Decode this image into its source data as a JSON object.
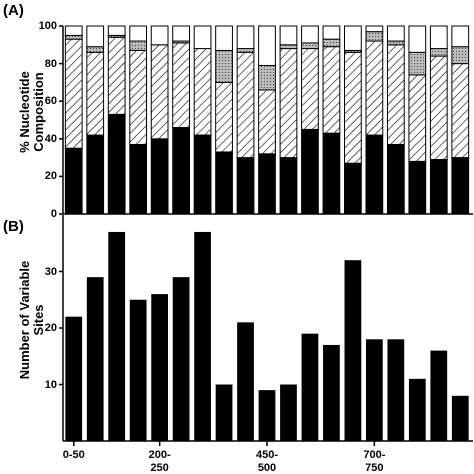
{
  "chart_data": [
    {
      "type": "stacked_bar",
      "panel_label": "(A)",
      "y_label": "% Nucleotide Composition",
      "ylim": [
        0,
        100
      ],
      "yticks": [
        0,
        20,
        40,
        60,
        80,
        100
      ],
      "series": [
        {
          "fill": "#000000",
          "values": [
            35,
            42,
            53,
            37,
            40,
            46,
            42,
            33,
            30,
            32,
            30,
            45,
            43,
            27,
            42,
            37,
            28,
            29,
            30
          ]
        },
        {
          "fill": "hatch",
          "values": [
            58,
            44,
            41,
            50,
            50,
            45,
            46,
            37,
            56,
            34,
            58,
            43,
            46,
            59,
            50,
            53,
            46,
            55,
            50
          ]
        },
        {
          "fill": "dots",
          "values": [
            2,
            3,
            1,
            5,
            0,
            1,
            0,
            17,
            2,
            13,
            2,
            3,
            4,
            1,
            5,
            2,
            12,
            4,
            9
          ]
        },
        {
          "fill": "#ffffff",
          "values": [
            5,
            11,
            5,
            8,
            10,
            8,
            12,
            13,
            12,
            21,
            10,
            9,
            7,
            13,
            3,
            8,
            14,
            12,
            11
          ]
        }
      ]
    },
    {
      "type": "bar",
      "panel_label": "(B)",
      "y_label": "Number of Variable Sites",
      "ylim": [
        0,
        40
      ],
      "yticks": [
        10,
        20,
        30
      ],
      "color": "#000000",
      "categories": [
        "0-50",
        null,
        null,
        null,
        "200-250",
        null,
        null,
        null,
        null,
        "450-500",
        null,
        null,
        null,
        null,
        "700-750",
        null,
        null,
        null,
        null
      ],
      "values": [
        22,
        29,
        37,
        25,
        26,
        29,
        37,
        10,
        21,
        9,
        10,
        19,
        17,
        32,
        18,
        18,
        11,
        16,
        8
      ]
    }
  ]
}
